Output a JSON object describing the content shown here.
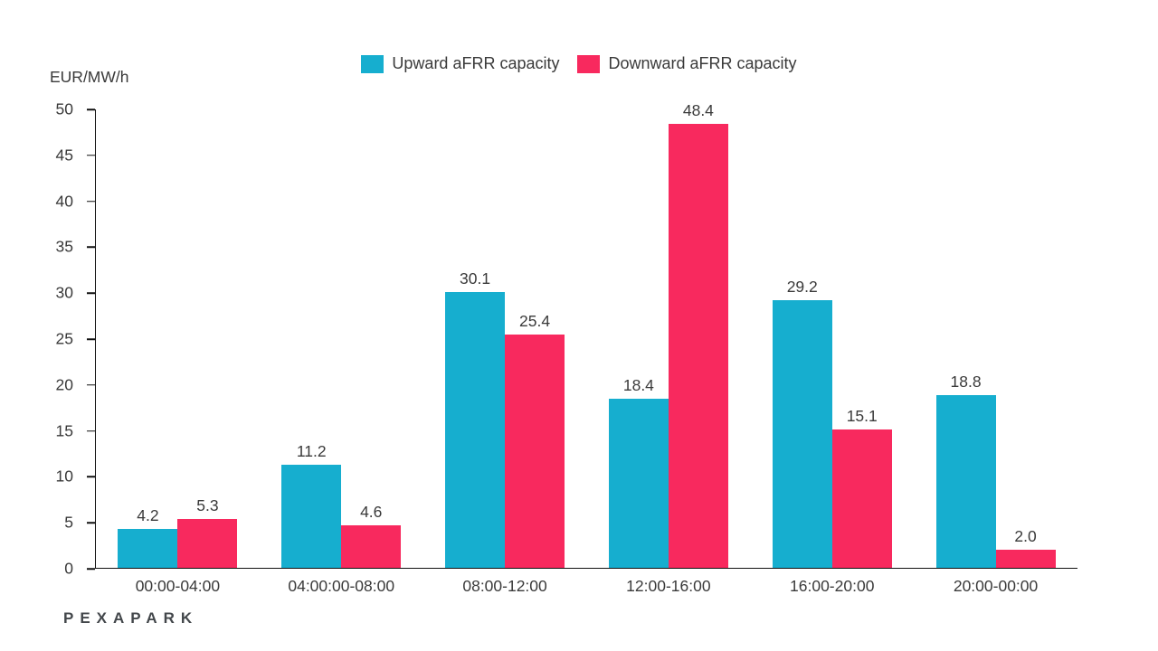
{
  "chart_data": {
    "type": "bar",
    "categories": [
      "00:00-04:00",
      "04:00:00-08:00",
      "08:00-12:00",
      "12:00-16:00",
      "16:00-20:00",
      "20:00-00:00"
    ],
    "series": [
      {
        "name": "Upward aFRR capacity",
        "color": "#16AECF",
        "values": [
          4.2,
          11.2,
          30.1,
          18.4,
          29.2,
          18.8
        ]
      },
      {
        "name": "Downward aFRR capacity",
        "color": "#F8295E",
        "values": [
          5.3,
          4.6,
          25.4,
          48.4,
          15.1,
          2.0
        ]
      }
    ],
    "title": "",
    "xlabel": "",
    "ylabel": "EUR/MW/h",
    "ylim": [
      0,
      50
    ],
    "yticks": [
      0,
      5,
      10,
      15,
      20,
      25,
      30,
      35,
      40,
      45,
      50
    ],
    "grid": false,
    "legend_position": "top",
    "value_labels": true,
    "value_label_format": "one_decimal"
  },
  "footer": {
    "logo": "PEXAPARK"
  }
}
